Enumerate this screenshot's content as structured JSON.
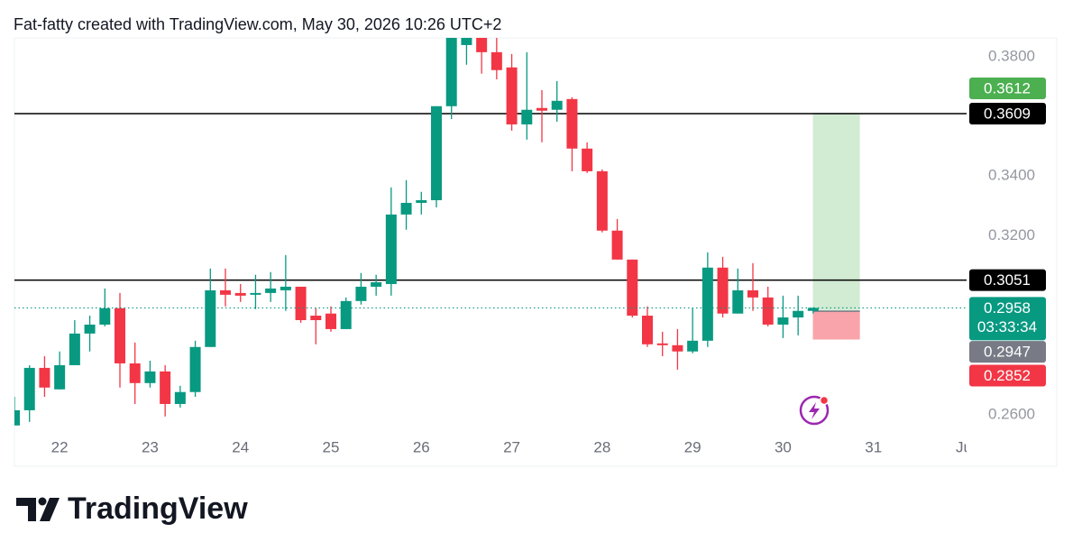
{
  "header": "Fat-fatty created with TradingView.com, May 30, 2026 10:26 UTC+2",
  "chart_data": {
    "type": "candlestick",
    "x": [
      21.5,
      21.6667,
      21.8333,
      22,
      22.1667,
      22.3333,
      22.5,
      22.6667,
      22.8333,
      23,
      23.1667,
      23.3333,
      23.5,
      23.6667,
      23.8333,
      24,
      24.1667,
      24.3333,
      24.5,
      24.6667,
      24.8333,
      25,
      25.1667,
      25.3333,
      25.5,
      25.6667,
      25.8333,
      26,
      26.1667,
      26.3333,
      26.5,
      26.6667,
      26.8333,
      27,
      27.1667,
      27.3333,
      27.5,
      27.6667,
      27.8333,
      28,
      28.1667,
      28.3333,
      28.5,
      28.6667,
      28.8333,
      29,
      29.1667,
      29.3333,
      29.5,
      29.6667,
      29.8333,
      30,
      30.1667,
      30.3333
    ],
    "open": [
      0.2564,
      0.2615,
      0.2757,
      0.2685,
      0.2766,
      0.2872,
      0.2902,
      0.2957,
      0.2772,
      0.2706,
      0.2745,
      0.2636,
      0.2676,
      0.2827,
      0.3017,
      0.3008,
      0.3002,
      0.3008,
      0.3017,
      0.3029,
      0.2932,
      0.2939,
      0.2887,
      0.2981,
      0.3029,
      0.3038,
      0.3271,
      0.331,
      0.3319,
      0.3634,
      0.3839,
      0.3863,
      0.3815,
      0.3764,
      0.3573,
      0.3628,
      0.3622,
      0.3658,
      0.3492,
      0.3416,
      0.3217,
      0.312,
      0.2932,
      0.2839,
      0.2833,
      0.2812,
      0.2848,
      0.3093,
      0.2939,
      0.3017,
      0.2993,
      0.2902,
      0.2926,
      0.2948
    ],
    "high": [
      0.266,
      0.2766,
      0.2796,
      0.2812,
      0.2917,
      0.2932,
      0.3023,
      0.3008,
      0.2842,
      0.2781,
      0.2766,
      0.2697,
      0.2848,
      0.309,
      0.309,
      0.3038,
      0.3069,
      0.3078,
      0.3135,
      0.3029,
      0.2957,
      0.2963,
      0.2993,
      0.3075,
      0.3069,
      0.3362,
      0.3386,
      0.3347,
      0.3634,
      0.387,
      0.39,
      0.3885,
      0.3863,
      0.3809,
      0.3815,
      0.3688,
      0.3718,
      0.3664,
      0.3513,
      0.3422,
      0.3256,
      0.312,
      0.2963,
      0.2878,
      0.2887,
      0.2957,
      0.3144,
      0.3129,
      0.309,
      0.3108,
      0.3029,
      0.2999,
      0.2999,
      0.296
    ],
    "low": [
      0.2564,
      0.2576,
      0.266,
      0.2685,
      0.2766,
      0.2812,
      0.2896,
      0.2691,
      0.2636,
      0.2691,
      0.2594,
      0.2624,
      0.266,
      0.2827,
      0.2963,
      0.2978,
      0.2954,
      0.2978,
      0.2948,
      0.2908,
      0.2836,
      0.2878,
      0.2887,
      0.2969,
      0.2999,
      0.2999,
      0.322,
      0.3271,
      0.3295,
      0.3591,
      0.3773,
      0.3743,
      0.3724,
      0.3552,
      0.3522,
      0.3513,
      0.3582,
      0.3416,
      0.341,
      0.3211,
      0.312,
      0.2926,
      0.2827,
      0.2796,
      0.2751,
      0.2806,
      0.2827,
      0.2926,
      0.2939,
      0.2948,
      0.2896,
      0.2857,
      0.2866,
      0.2939
    ],
    "close": [
      0.2615,
      0.2757,
      0.2691,
      0.2766,
      0.2872,
      0.2902,
      0.2957,
      0.2772,
      0.2706,
      0.2745,
      0.2636,
      0.2676,
      0.2827,
      0.3017,
      0.3002,
      0.2999,
      0.3008,
      0.3023,
      0.3029,
      0.2917,
      0.2917,
      0.2887,
      0.2981,
      0.3029,
      0.3044,
      0.3271,
      0.331,
      0.3319,
      0.3634,
      0.3863,
      0.3876,
      0.3815,
      0.3755,
      0.3573,
      0.3622,
      0.3619,
      0.3652,
      0.3492,
      0.3416,
      0.3217,
      0.312,
      0.2932,
      0.2836,
      0.2833,
      0.2812,
      0.2848,
      0.3093,
      0.2939,
      0.3017,
      0.2993,
      0.2902,
      0.2926,
      0.2948,
      0.2958
    ],
    "up_color": "#089981",
    "down_color": "#f23645",
    "countdown": "03:33:34",
    "xlim": [
      21.5,
      32.03
    ],
    "xticks": [
      22,
      23,
      24,
      25,
      26,
      27,
      28,
      29,
      30,
      31,
      {
        "value": 32,
        "label": "Ju"
      }
    ],
    "ylim": [
      0.2515,
      0.3863
    ],
    "yticks": [
      {
        "value": 0.26,
        "label": "0.2600"
      },
      {
        "value": 0.32,
        "label": "0.3200"
      },
      {
        "value": 0.34,
        "label": "0.3400"
      },
      {
        "value": 0.38,
        "label": "0.3800"
      }
    ],
    "grid": false,
    "hlines": [
      0.3609,
      0.3051
    ],
    "hline_color": "#000000",
    "position": {
      "entry": 0.2947,
      "target": 0.3612,
      "stop": 0.2852,
      "x": [
        30.33,
        30.85
      ],
      "entry_color": "#787b86",
      "target_color": "#4caf50",
      "stop_color": "#f23645"
    }
  },
  "footer": {
    "brand": "TradingView"
  }
}
